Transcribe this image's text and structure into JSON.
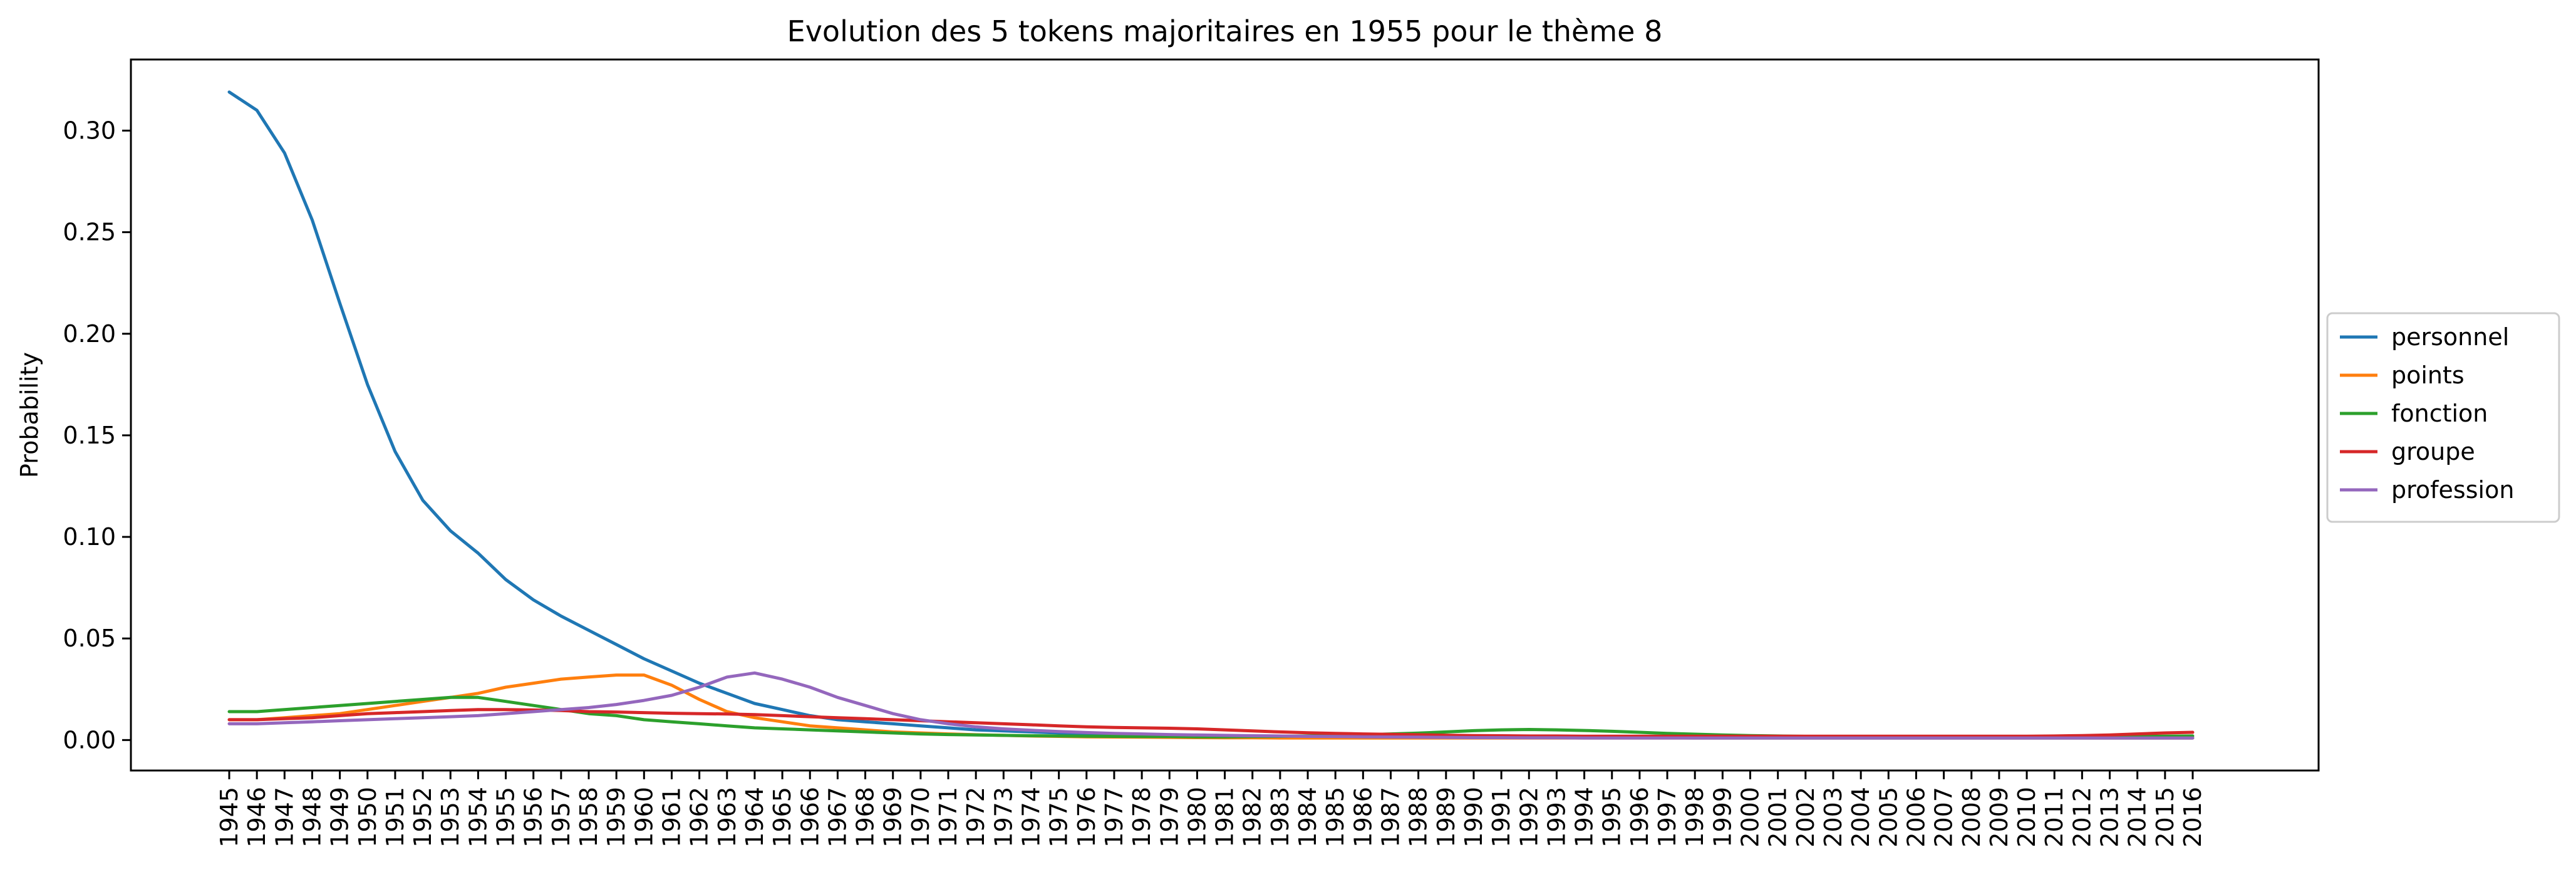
{
  "chart_data": {
    "type": "line",
    "title": "Evolution des 5 tokens majoritaires en 1955 pour le thème 8",
    "xlabel": "",
    "ylabel": "Probability",
    "ylim": [
      -0.015,
      0.335
    ],
    "yticks": [
      "0.00",
      "0.05",
      "0.10",
      "0.15",
      "0.20",
      "0.25",
      "0.30"
    ],
    "grid": false,
    "legend_placement": "center-right-outside",
    "x": [
      "1945",
      "1946",
      "1947",
      "1948",
      "1949",
      "1950",
      "1951",
      "1952",
      "1953",
      "1954",
      "1955",
      "1956",
      "1957",
      "1958",
      "1959",
      "1960",
      "1961",
      "1962",
      "1963",
      "1964",
      "1965",
      "1966",
      "1967",
      "1968",
      "1969",
      "1970",
      "1971",
      "1972",
      "1973",
      "1974",
      "1975",
      "1976",
      "1977",
      "1978",
      "1979",
      "1980",
      "1981",
      "1982",
      "1983",
      "1984",
      "1985",
      "1986",
      "1987",
      "1988",
      "1989",
      "1990",
      "1991",
      "1992",
      "1993",
      "1994",
      "1995",
      "1996",
      "1997",
      "1998",
      "1999",
      "2000",
      "2001",
      "2002",
      "2003",
      "2004",
      "2005",
      "2006",
      "2007",
      "2008",
      "2009",
      "2010",
      "2011",
      "2012",
      "2013",
      "2014",
      "2015",
      "2016"
    ],
    "series": [
      {
        "name": "personnel",
        "color": "#1f77b4",
        "values": [
          0.319,
          0.31,
          0.289,
          0.256,
          0.215,
          0.175,
          0.142,
          0.118,
          0.103,
          0.092,
          0.079,
          0.069,
          0.061,
          0.054,
          0.047,
          0.04,
          0.034,
          0.028,
          0.023,
          0.018,
          0.015,
          0.012,
          0.01,
          0.009,
          0.008,
          0.007,
          0.006,
          0.005,
          0.0045,
          0.004,
          0.0035,
          0.003,
          0.0028,
          0.0026,
          0.0024,
          0.0022,
          0.002,
          0.0019,
          0.0018,
          0.0017,
          0.0016,
          0.0015,
          0.0015,
          0.0014,
          0.0014,
          0.0013,
          0.0013,
          0.0012,
          0.0012,
          0.0012,
          0.0011,
          0.0011,
          0.0011,
          0.001,
          0.001,
          0.001,
          0.001,
          0.001,
          0.001,
          0.001,
          0.001,
          0.001,
          0.001,
          0.001,
          0.001,
          0.001,
          0.001,
          0.001,
          0.001,
          0.001,
          0.001,
          0.001
        ]
      },
      {
        "name": "points",
        "color": "#ff7f0e",
        "values": [
          0.01,
          0.01,
          0.011,
          0.012,
          0.013,
          0.015,
          0.017,
          0.019,
          0.021,
          0.023,
          0.026,
          0.028,
          0.03,
          0.031,
          0.032,
          0.032,
          0.027,
          0.02,
          0.014,
          0.011,
          0.009,
          0.007,
          0.006,
          0.005,
          0.004,
          0.0035,
          0.003,
          0.0026,
          0.0023,
          0.002,
          0.0018,
          0.0016,
          0.0015,
          0.0014,
          0.0013,
          0.0012,
          0.0011,
          0.0011,
          0.001,
          0.001,
          0.001,
          0.001,
          0.001,
          0.001,
          0.001,
          0.001,
          0.001,
          0.001,
          0.001,
          0.001,
          0.001,
          0.001,
          0.001,
          0.001,
          0.001,
          0.001,
          0.001,
          0.001,
          0.001,
          0.001,
          0.001,
          0.001,
          0.001,
          0.001,
          0.001,
          0.001,
          0.001,
          0.001,
          0.001,
          0.001,
          0.001,
          0.001
        ]
      },
      {
        "name": "fonction",
        "color": "#2ca02c",
        "values": [
          0.014,
          0.014,
          0.015,
          0.016,
          0.017,
          0.018,
          0.019,
          0.02,
          0.021,
          0.021,
          0.019,
          0.017,
          0.015,
          0.013,
          0.012,
          0.01,
          0.009,
          0.008,
          0.007,
          0.006,
          0.0055,
          0.005,
          0.0045,
          0.004,
          0.0035,
          0.003,
          0.0027,
          0.0025,
          0.0023,
          0.0021,
          0.002,
          0.0019,
          0.0018,
          0.0017,
          0.0017,
          0.0016,
          0.0016,
          0.0017,
          0.0018,
          0.002,
          0.0023,
          0.0026,
          0.003,
          0.0034,
          0.004,
          0.0046,
          0.005,
          0.0052,
          0.005,
          0.0047,
          0.0043,
          0.0038,
          0.0033,
          0.0029,
          0.0025,
          0.0022,
          0.002,
          0.0018,
          0.0017,
          0.0016,
          0.0015,
          0.0015,
          0.0015,
          0.0015,
          0.0015,
          0.0015,
          0.0015,
          0.0016,
          0.0017,
          0.0018,
          0.0019,
          0.002
        ]
      },
      {
        "name": "groupe",
        "color": "#d62728",
        "values": [
          0.01,
          0.01,
          0.0105,
          0.011,
          0.012,
          0.013,
          0.0135,
          0.014,
          0.0145,
          0.015,
          0.015,
          0.0148,
          0.0145,
          0.014,
          0.0138,
          0.0135,
          0.0132,
          0.013,
          0.0128,
          0.0125,
          0.012,
          0.0115,
          0.011,
          0.0105,
          0.01,
          0.0095,
          0.009,
          0.0085,
          0.008,
          0.0075,
          0.007,
          0.0065,
          0.0062,
          0.006,
          0.0058,
          0.0055,
          0.005,
          0.0045,
          0.004,
          0.0036,
          0.0033,
          0.003,
          0.0028,
          0.0026,
          0.0024,
          0.0022,
          0.0021,
          0.002,
          0.002,
          0.0019,
          0.0019,
          0.0019,
          0.0019,
          0.0019,
          0.0019,
          0.0019,
          0.0019,
          0.0019,
          0.0019,
          0.0019,
          0.0019,
          0.0019,
          0.0019,
          0.0019,
          0.0019,
          0.0019,
          0.002,
          0.0022,
          0.0025,
          0.003,
          0.0035,
          0.0038
        ]
      },
      {
        "name": "profession",
        "color": "#9467bd",
        "values": [
          0.008,
          0.008,
          0.0085,
          0.009,
          0.0095,
          0.01,
          0.0105,
          0.011,
          0.0115,
          0.012,
          0.013,
          0.014,
          0.015,
          0.016,
          0.0175,
          0.0195,
          0.022,
          0.026,
          0.031,
          0.033,
          0.03,
          0.026,
          0.021,
          0.017,
          0.013,
          0.01,
          0.008,
          0.0065,
          0.0055,
          0.0048,
          0.0042,
          0.0037,
          0.0033,
          0.003,
          0.0027,
          0.0025,
          0.0023,
          0.0021,
          0.002,
          0.0018,
          0.0017,
          0.0016,
          0.0015,
          0.0014,
          0.0013,
          0.0012,
          0.0012,
          0.0011,
          0.0011,
          0.001,
          0.001,
          0.001,
          0.001,
          0.001,
          0.001,
          0.001,
          0.001,
          0.001,
          0.001,
          0.001,
          0.001,
          0.001,
          0.001,
          0.001,
          0.001,
          0.001,
          0.001,
          0.001,
          0.001,
          0.001,
          0.001,
          0.001
        ]
      }
    ]
  }
}
